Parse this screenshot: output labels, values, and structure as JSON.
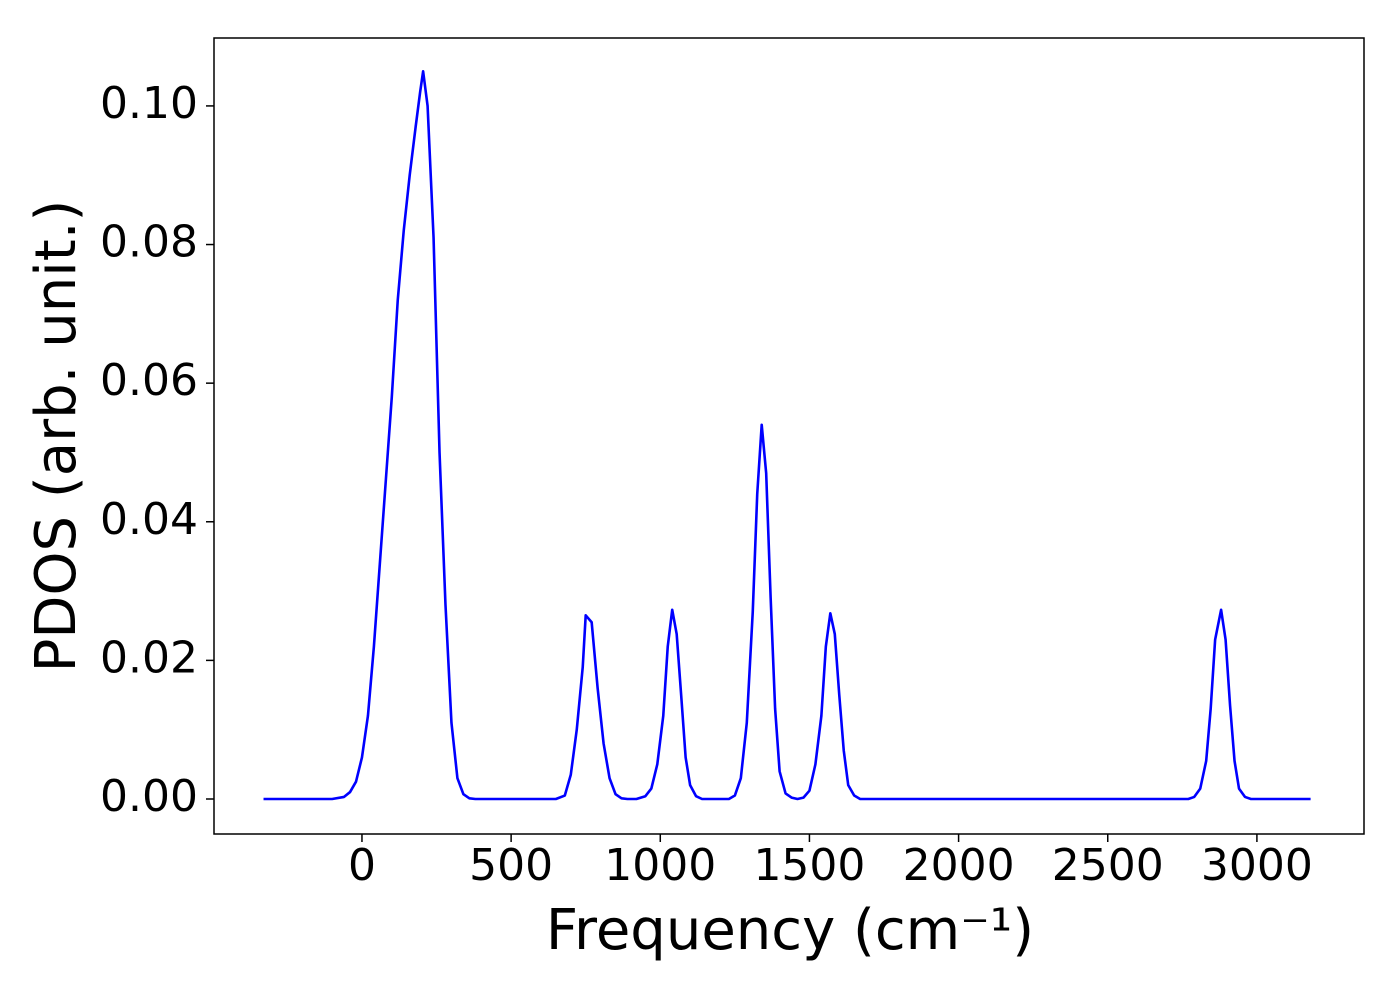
{
  "chart_data": {
    "type": "line",
    "xlabel": "Frequency (cm⁻¹)",
    "ylabel": "PDOS (arb. unit.)",
    "color": "#0000ff",
    "x": [
      -330,
      -100,
      -60,
      -40,
      -20,
      0,
      20,
      40,
      60,
      80,
      100,
      120,
      140,
      160,
      180,
      195,
      205,
      220,
      240,
      260,
      280,
      300,
      320,
      340,
      360,
      380,
      650,
      680,
      700,
      720,
      740,
      750,
      770,
      790,
      810,
      830,
      850,
      870,
      890,
      920,
      950,
      970,
      990,
      1010,
      1025,
      1040,
      1055,
      1070,
      1085,
      1100,
      1120,
      1140,
      1230,
      1250,
      1270,
      1290,
      1310,
      1325,
      1340,
      1355,
      1370,
      1385,
      1400,
      1420,
      1440,
      1460,
      1480,
      1500,
      1520,
      1540,
      1555,
      1570,
      1585,
      1600,
      1615,
      1630,
      1650,
      1670,
      2770,
      2790,
      2810,
      2830,
      2845,
      2860,
      2880,
      2895,
      2910,
      2925,
      2940,
      2960,
      2980,
      3180
    ],
    "values": [
      0,
      0,
      0.0003,
      0.001,
      0.0025,
      0.006,
      0.012,
      0.022,
      0.034,
      0.046,
      0.058,
      0.072,
      0.082,
      0.09,
      0.097,
      0.102,
      0.105,
      0.1,
      0.081,
      0.05,
      0.028,
      0.011,
      0.003,
      0.0007,
      0.0001,
      0,
      0,
      0.0005,
      0.0035,
      0.01,
      0.019,
      0.0265,
      0.0255,
      0.016,
      0.008,
      0.003,
      0.0007,
      0.0001,
      0,
      0,
      0.0004,
      0.0015,
      0.005,
      0.012,
      0.022,
      0.0273,
      0.0238,
      0.015,
      0.006,
      0.002,
      0.0004,
      0,
      0,
      0.0005,
      0.003,
      0.011,
      0.027,
      0.044,
      0.054,
      0.047,
      0.029,
      0.013,
      0.004,
      0.0008,
      0.0002,
      0,
      0.0002,
      0.0012,
      0.005,
      0.012,
      0.022,
      0.0268,
      0.0238,
      0.015,
      0.007,
      0.002,
      0.0005,
      0,
      0,
      0.0003,
      0.0015,
      0.0055,
      0.013,
      0.023,
      0.0273,
      0.023,
      0.0135,
      0.0055,
      0.0015,
      0.0003,
      0,
      0
    ],
    "xlim": [
      -496,
      3359
    ],
    "ylim": [
      -0.00505,
      0.1098
    ],
    "xticks": [
      0,
      500,
      1000,
      1500,
      2000,
      2500,
      3000
    ],
    "yticks": [
      {
        "value": 0,
        "label": "0.00"
      },
      {
        "value": 0.02,
        "label": "0.02"
      },
      {
        "value": 0.04,
        "label": "0.04"
      },
      {
        "value": 0.06,
        "label": "0.06"
      },
      {
        "value": 0.08,
        "label": "0.08"
      },
      {
        "value": 0.1,
        "label": "0.10"
      }
    ],
    "grid": false
  }
}
